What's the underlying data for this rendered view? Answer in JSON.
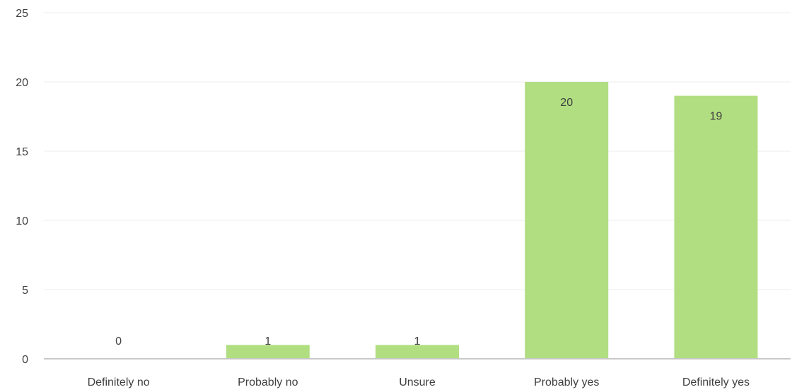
{
  "chart_data": {
    "type": "bar",
    "categories": [
      "Definitely no",
      "Probably no",
      "Unsure",
      "Probably yes",
      "Definitely yes"
    ],
    "values": [
      0,
      1,
      1,
      20,
      19
    ],
    "data_labels": [
      "0",
      "1",
      "1",
      "20",
      "19"
    ],
    "title": "",
    "xlabel": "",
    "ylabel": "",
    "ylim": [
      0,
      25
    ],
    "yticks": [
      0,
      5,
      10,
      15,
      20,
      25
    ],
    "ytick_labels": [
      "0",
      "5",
      "10",
      "15",
      "20",
      "25"
    ],
    "grid": true,
    "legend": "none",
    "colors": {
      "bar": "#b1de81",
      "grid": "#ececec",
      "axis": "#c8c8c8",
      "text": "#404040"
    }
  }
}
